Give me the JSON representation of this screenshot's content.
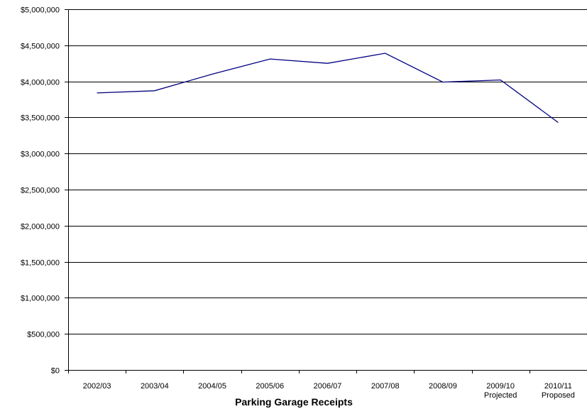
{
  "chart_data": {
    "type": "line",
    "title": "",
    "xlabel": "Parking Garage Receipts",
    "ylabel": "",
    "categories": [
      [
        "2002/03"
      ],
      [
        "2003/04"
      ],
      [
        "2004/05"
      ],
      [
        "2005/06"
      ],
      [
        "2006/07"
      ],
      [
        "2007/08"
      ],
      [
        "2008/09"
      ],
      [
        "2009/10",
        "Projected"
      ],
      [
        "2010/11",
        "Proposed"
      ]
    ],
    "series": [
      {
        "values": [
          3840000,
          3870000,
          4100000,
          4310000,
          4250000,
          4390000,
          3990000,
          4020000,
          3430000
        ],
        "color": "#000080"
      }
    ],
    "ylim": [
      0,
      5000000
    ],
    "yticks": [
      0,
      500000,
      1000000,
      1500000,
      2000000,
      2500000,
      3000000,
      3500000,
      4000000,
      4500000,
      5000000
    ],
    "ytick_labels": [
      "$0",
      "$500,000",
      "$1,000,000",
      "$1,500,000",
      "$2,000,000",
      "$2,500,000",
      "$3,000,000",
      "$3,500,000",
      "$4,000,000",
      "$4,500,000",
      "$5,000,000"
    ],
    "grid": true,
    "legend": "none"
  }
}
